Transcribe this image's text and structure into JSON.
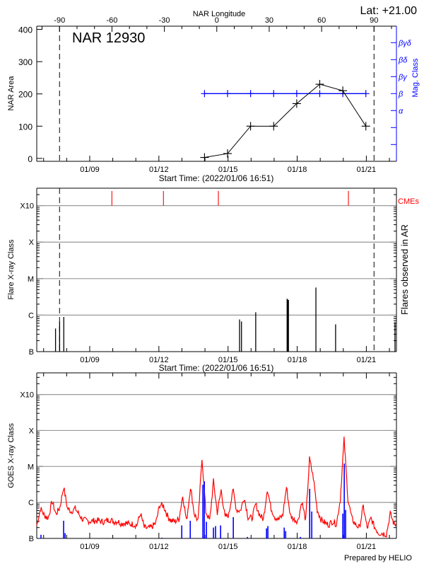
{
  "footer": "Prepared by HELIO",
  "chart_data": [
    {
      "type": "line",
      "title": "NAR 12930",
      "xlabel": "Start Time: (2022/01/06 16:51)",
      "ylabel": "NAR Area",
      "ylim": [
        -9,
        410
      ],
      "yticks": [
        "0",
        "100",
        "200",
        "300",
        "400"
      ],
      "xlim": [
        "2022-01-06T16:51",
        "2022-01-22T07:20"
      ],
      "x_tick_labels": [
        "01/09",
        "01/12",
        "01/15",
        "01/18",
        "01/21"
      ],
      "top_axis": {
        "label": "NAR Longitude",
        "ticks": [
          "-90",
          "-60",
          "-30",
          "0",
          "30",
          "60",
          "90"
        ],
        "limb_crossings": [
          "2022-01-07T16:35",
          "2022-01-21T08:00"
        ]
      },
      "lat_label": "Lat: +21.00",
      "series": [
        {
          "x": [
            "2022-01-13T23:30",
            "2022-01-14T23:30",
            "2022-01-15T23:30",
            "2022-01-16T23:30",
            "2022-01-17T23:30",
            "2022-01-18T23:30",
            "2022-01-19T23:30",
            "2022-01-20T23:30"
          ],
          "values": [
            3,
            15,
            100,
            100,
            170,
            230,
            210,
            100
          ],
          "color": "#000000"
        }
      ],
      "mag_class": {
        "axis_label": "Mag. Class",
        "levels": [
          "",
          "",
          "α",
          "β",
          "βγ",
          "βδ",
          "βγδ"
        ],
        "values": [
          "β",
          "β",
          "β",
          "β",
          "β",
          "β",
          "β",
          "β"
        ],
        "color": "#0000ff"
      }
    },
    {
      "type": "bar",
      "xlabel": "Start Time: (2022/01/06 16:51)",
      "ylabel": "Flare X-ray Class",
      "right_label": "Flares observed in AR",
      "scale": "log",
      "ylim": [
        1e-07,
        0.003
      ],
      "class_ticks": [
        "B",
        "C",
        "M",
        "X",
        "X10"
      ],
      "class_flux": [
        1e-07,
        1e-06,
        1e-05,
        0.0001,
        0.001
      ],
      "grid": true,
      "x_tick_labels": [
        "01/09",
        "01/12",
        "01/15",
        "01/18",
        "01/21"
      ],
      "flares": [
        {
          "time": "2022-01-07T12:25",
          "flux": 4.3e-07
        },
        {
          "time": "2022-01-07T16:40",
          "flux": 6.6e-07
        },
        {
          "time": "2022-01-07T21:00",
          "flux": 8.9e-07
        },
        {
          "time": "2022-01-15T12:00",
          "flux": 7.6e-07
        },
        {
          "time": "2022-01-15T14:00",
          "flux": 6.7e-07
        },
        {
          "time": "2022-01-16T04:50",
          "flux": 1.2e-06
        },
        {
          "time": "2022-01-17T13:30",
          "flux": 2.8e-06
        },
        {
          "time": "2022-01-17T14:00",
          "flux": 2.7e-06
        },
        {
          "time": "2022-01-17T14:55",
          "flux": 2.6e-06
        },
        {
          "time": "2022-01-18T19:30",
          "flux": 5.7e-06
        },
        {
          "time": "2022-01-19T16:00",
          "flux": 5.6e-07
        },
        {
          "time": "2022-01-22T05:50",
          "flux": 6.4e-07
        }
      ],
      "cmes": {
        "label": "CMEs",
        "color": "#ff0000",
        "times": [
          "2022-01-09T23:05",
          "2022-01-12T04:45",
          "2022-01-14T13:55",
          "2022-01-20T05:20"
        ]
      }
    },
    {
      "type": "line",
      "ylabel": "GOES X-ray Class",
      "scale": "log",
      "ylim": [
        1e-07,
        0.004
      ],
      "class_ticks": [
        "B",
        "C",
        "M",
        "X",
        "X10"
      ],
      "class_flux": [
        1e-07,
        1e-06,
        1e-05,
        0.0001,
        0.001
      ],
      "grid": true,
      "x_tick_labels": [
        "01/09",
        "01/12",
        "01/15",
        "01/18",
        "01/21"
      ],
      "goes": {
        "color": "#ff0000",
        "start": "2022-01-06T16:51",
        "step_hours": 4,
        "flux": [
          2.3e-07,
          6.8e-07,
          4.3e-07,
          3.7e-07,
          1.07e-06,
          4.7e-07,
          7.1e-07,
          2.7e-06,
          6.8e-07,
          5.6e-07,
          6.8e-07,
          4.7e-07,
          3.3e-07,
          3.1e-07,
          3e-07,
          3.1e-07,
          3.1e-07,
          2.9e-07,
          3e-07,
          3.4e-07,
          2.9e-07,
          3e-07,
          2.6e-07,
          2.7e-07,
          2.5e-07,
          2.5e-07,
          2.3e-07,
          4.9e-07,
          2e-07,
          1.9e-07,
          2.1e-07,
          2.7e-07,
          8.5e-07,
          8.1e-07,
          4.3e-07,
          3.1e-07,
          3e-07,
          3.4e-07,
          1.55e-06,
          3e-07,
          2.7e-06,
          4.9e-07,
          3e-07,
          1.8e-05,
          5.6e-07,
          3.1e-07,
          3.85e-06,
          5.2e-07,
          2.2e-06,
          3.9e-07,
          4.5e-07,
          2.4e-06,
          6.2e-07,
          5.9e-07,
          1.4e-06,
          3.9e-07,
          3.6e-07,
          8.9e-07,
          4.5e-07,
          3.4e-07,
          2.4e-06,
          6.8e-07,
          3.9e-07,
          3.4e-07,
          4.3e-07,
          2.7e-06,
          4.3e-07,
          3.3e-07,
          3.1e-07,
          1.07e-06,
          3.1e-07,
          1.6e-05,
          4.8e-06,
          6.2e-07,
          3.4e-07,
          2.7e-07,
          2.4e-07,
          3e-07,
          2.5e-07,
          1.2e-06,
          5.6e-05,
          1.23e-06,
          3.6e-07,
          2.4e-07,
          2e-07,
          7.8e-07,
          1.9e-07,
          3.6e-07,
          2e-07,
          1.4e-07,
          1.4e-07,
          1.3e-07,
          4.9e-07,
          2.5e-07
        ]
      },
      "ar_flares": {
        "color": "#0000ff",
        "events": [
          {
            "time": "2022-01-06T21:15",
            "flux": 1.26e-07
          },
          {
            "time": "2022-01-07T20:50",
            "flux": 3.1e-07
          },
          {
            "time": "2022-01-07T22:20",
            "flux": 1.4e-07
          },
          {
            "time": "2022-01-12T03:10",
            "flux": 1.05e-07
          },
          {
            "time": "2022-01-12T23:50",
            "flux": 2.3e-07
          },
          {
            "time": "2022-01-13T08:40",
            "flux": 3.1e-07
          },
          {
            "time": "2022-01-13T21:50",
            "flux": 3.1e-06
          },
          {
            "time": "2022-01-13T23:20",
            "flux": 3.85e-06
          },
          {
            "time": "2022-01-14T01:30",
            "flux": 2.9e-07
          },
          {
            "time": "2022-01-14T08:50",
            "flux": 2e-07
          },
          {
            "time": "2022-01-14T11:00",
            "flux": 2.2e-07
          },
          {
            "time": "2022-01-14T16:15",
            "flux": 2.3e-07
          },
          {
            "time": "2022-01-15T05:30",
            "flux": 3.9e-07
          },
          {
            "time": "2022-01-15T20:10",
            "flux": 1.1e-07
          },
          {
            "time": "2022-01-16T16:05",
            "flux": 1.9e-07
          },
          {
            "time": "2022-01-16T17:30",
            "flux": 2.2e-07
          },
          {
            "time": "2022-01-17T10:30",
            "flux": 2e-07
          },
          {
            "time": "2022-01-17T12:00",
            "flux": 1.6e-07
          },
          {
            "time": "2022-01-18T03:20",
            "flux": 1.1e-07
          },
          {
            "time": "2022-01-18T13:00",
            "flux": 2.4e-06
          },
          {
            "time": "2022-01-18T15:10",
            "flux": 5.6e-07
          },
          {
            "time": "2022-01-19T23:30",
            "flux": 4.9e-07
          },
          {
            "time": "2022-01-20T01:00",
            "flux": 1.2e-05
          },
          {
            "time": "2022-01-20T02:25",
            "flux": 6.2e-07
          }
        ]
      }
    }
  ]
}
